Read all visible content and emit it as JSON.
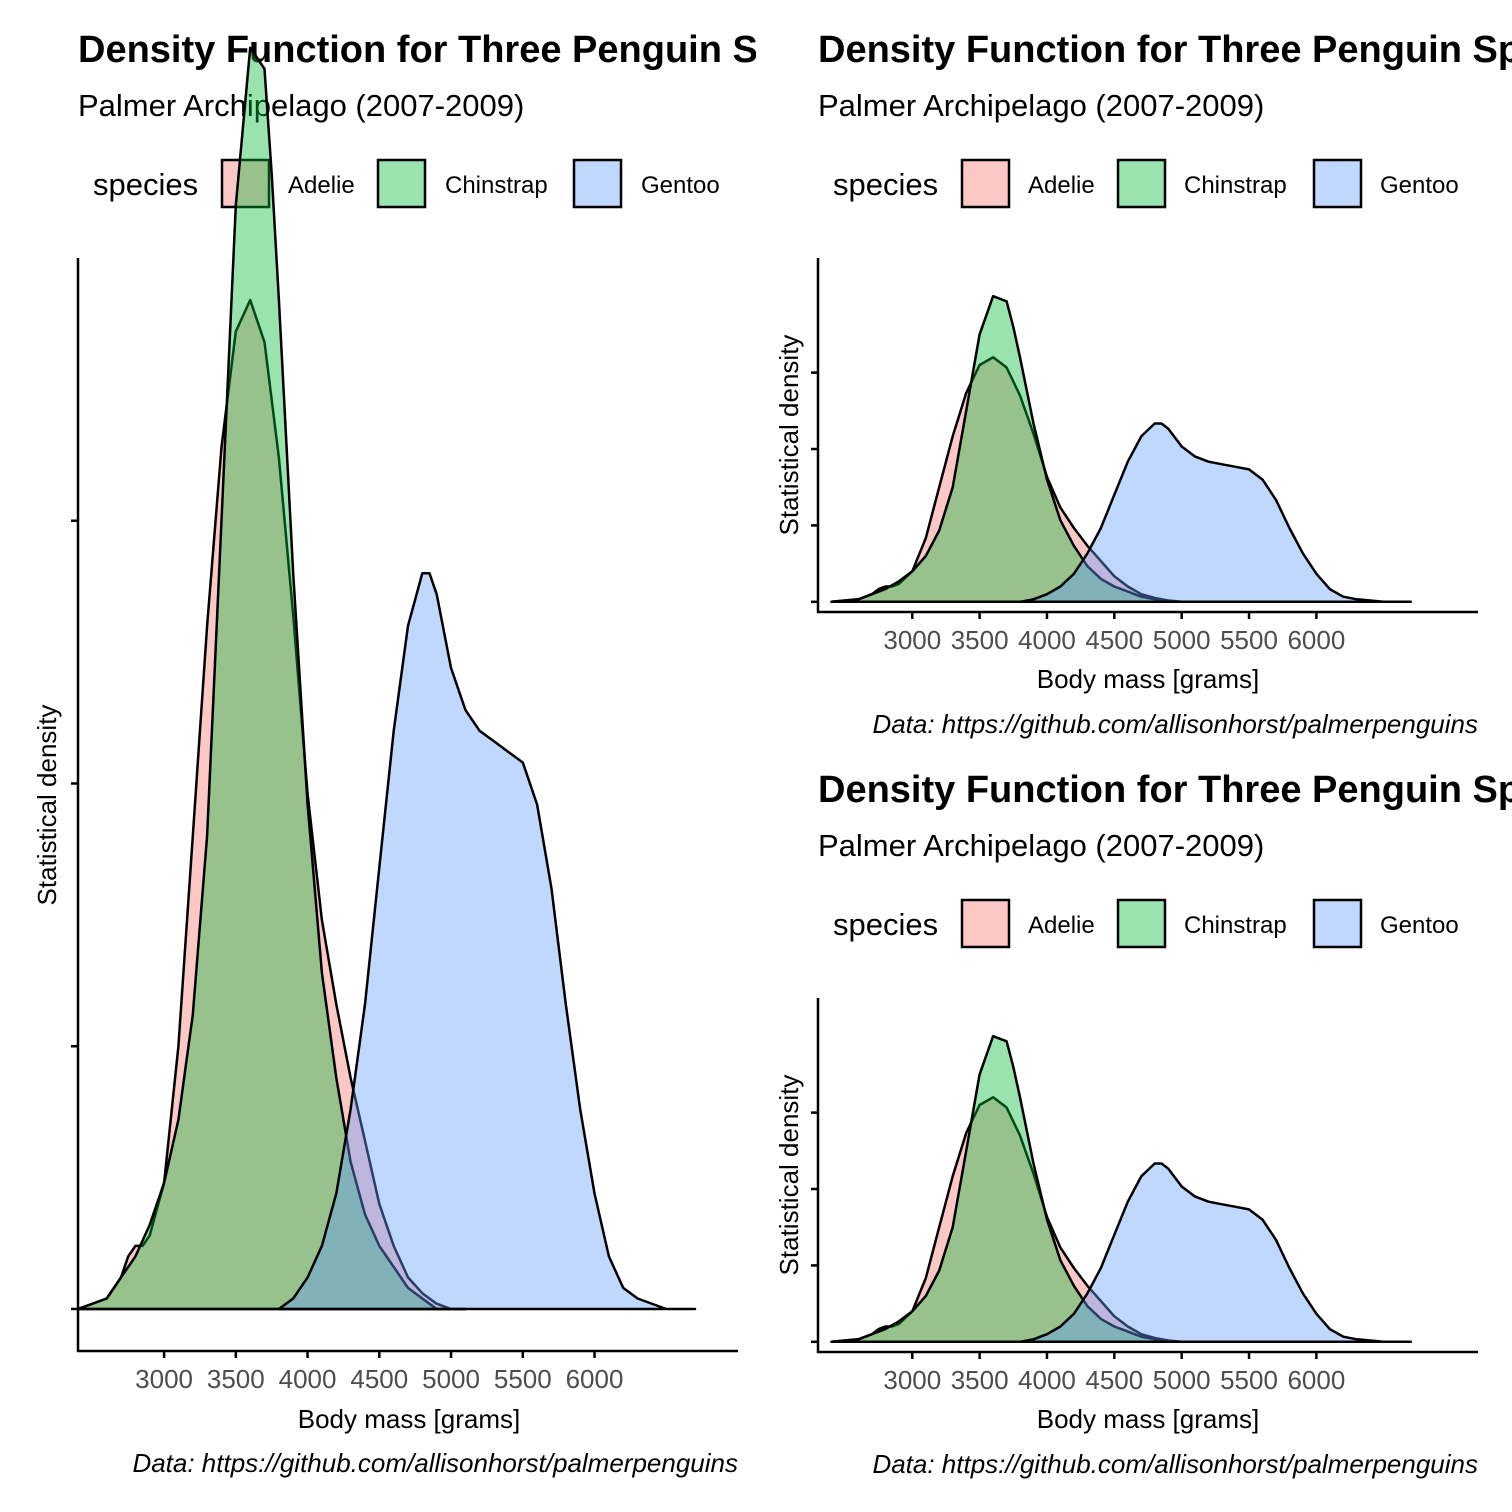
{
  "chart_data": [
    {
      "type": "area",
      "title": "Density Function for Three Penguin Species",
      "subtitle": "Palmer Archipelago (2007-2009)",
      "caption": "Data: https://github.com/allisonhorst/palmerpenguins",
      "xlabel": "Body mass [grams]",
      "ylabel": "Statistical density",
      "xlim": [
        2400,
        7000
      ],
      "ylim": [
        -4e-05,
        0.001
      ],
      "x_ticks": [
        3000,
        3500,
        4000,
        4500,
        5000,
        5500,
        6000
      ],
      "y_ticks": [
        0,
        0.00025,
        0.0005,
        0.00075
      ],
      "y_tick_labels_shown": false,
      "legend": {
        "title": "species",
        "position": "top",
        "entries": [
          "Adelie",
          "Chinstrap",
          "Gentoo"
        ]
      },
      "grid": false,
      "series": [
        {
          "name": "Adelie",
          "color": "#F8766D",
          "x": [
            2400,
            2600,
            2700,
            2750,
            2800,
            2850,
            2900,
            3000,
            3100,
            3200,
            3300,
            3400,
            3500,
            3600,
            3700,
            3800,
            3900,
            4000,
            4100,
            4200,
            4300,
            4400,
            4500,
            4600,
            4700,
            4800,
            4900,
            5000,
            5100
          ],
          "y": [
            0,
            1e-05,
            3e-05,
            5e-05,
            6e-05,
            6e-05,
            7e-05,
            0.00012,
            0.00025,
            0.00045,
            0.00065,
            0.00082,
            0.00093,
            0.00096,
            0.00092,
            0.00081,
            0.00066,
            0.00049,
            0.00037,
            0.00029,
            0.00022,
            0.00016,
            0.0001,
            6e-05,
            3e-05,
            1.5e-05,
            5e-06,
            0,
            0
          ]
        },
        {
          "name": "Chinstrap",
          "color": "#00BA38",
          "x": [
            2400,
            2600,
            2700,
            2800,
            2900,
            3000,
            3100,
            3200,
            3300,
            3400,
            3500,
            3600,
            3700,
            3750,
            3800,
            3900,
            4000,
            4100,
            4200,
            4300,
            4400,
            4500,
            4600,
            4700,
            4800,
            4900,
            5000,
            5100
          ],
          "y": [
            0,
            1e-05,
            3e-05,
            5e-05,
            8e-05,
            0.00012,
            0.00018,
            0.00028,
            0.00045,
            0.00075,
            0.00105,
            0.0012,
            0.00118,
            0.00108,
            0.00096,
            0.0007,
            0.00048,
            0.00032,
            0.00022,
            0.00014,
            9e-05,
            6e-05,
            4e-05,
            2e-05,
            1e-05,
            0,
            0,
            0
          ]
        },
        {
          "name": "Gentoo",
          "color": "#619CFF",
          "x": [
            3800,
            3900,
            4000,
            4100,
            4200,
            4300,
            4400,
            4500,
            4600,
            4700,
            4800,
            4850,
            4900,
            5000,
            5100,
            5200,
            5300,
            5400,
            5500,
            5600,
            5700,
            5800,
            5900,
            6000,
            6100,
            6200,
            6300,
            6500,
            6700
          ],
          "y": [
            0,
            1e-05,
            3e-05,
            6e-05,
            0.00011,
            0.00019,
            0.00029,
            0.00042,
            0.00055,
            0.00065,
            0.0007,
            0.0007,
            0.00068,
            0.00061,
            0.00057,
            0.00055,
            0.00054,
            0.00053,
            0.00052,
            0.00048,
            0.0004,
            0.00029,
            0.00019,
            0.00011,
            5e-05,
            2e-05,
            1e-05,
            0,
            0
          ]
        }
      ]
    },
    {
      "type": "area",
      "title": "Density Function for Three Penguin Species",
      "subtitle": "Palmer Archipelago (2007-2009)",
      "caption": "Data: https://github.com/allisonhorst/palmerpenguins",
      "xlabel": "Body mass [grams]",
      "ylabel": "Statistical density",
      "xlim": [
        2300,
        7200
      ],
      "ylim": [
        -4e-05,
        0.00135
      ],
      "x_ticks": [
        3000,
        3500,
        4000,
        4500,
        5000,
        5500,
        6000
      ],
      "y_ticks": [
        0,
        0.0003,
        0.0006,
        0.0009
      ],
      "y_tick_labels_shown": false,
      "legend": {
        "title": "species",
        "position": "top",
        "entries": [
          "Adelie",
          "Chinstrap",
          "Gentoo"
        ]
      },
      "grid": false,
      "series": [
        {
          "name": "Adelie",
          "color": "#F8766D",
          "x": [
            2400,
            2600,
            2700,
            2750,
            2800,
            2850,
            2900,
            3000,
            3100,
            3200,
            3300,
            3400,
            3500,
            3600,
            3700,
            3800,
            3900,
            4000,
            4100,
            4200,
            4300,
            4400,
            4500,
            4600,
            4700,
            4800,
            4900,
            5000,
            5100
          ],
          "y": [
            0,
            1e-05,
            3e-05,
            5e-05,
            6e-05,
            6e-05,
            7e-05,
            0.00012,
            0.00025,
            0.00045,
            0.00065,
            0.00082,
            0.00093,
            0.00096,
            0.00092,
            0.00081,
            0.00066,
            0.00049,
            0.00037,
            0.00029,
            0.00022,
            0.00016,
            0.0001,
            6e-05,
            3e-05,
            1.5e-05,
            5e-06,
            0,
            0
          ]
        },
        {
          "name": "Chinstrap",
          "color": "#00BA38",
          "x": [
            2400,
            2600,
            2700,
            2800,
            2900,
            3000,
            3100,
            3200,
            3300,
            3400,
            3500,
            3600,
            3700,
            3750,
            3800,
            3900,
            4000,
            4100,
            4200,
            4300,
            4400,
            4500,
            4600,
            4700,
            4800,
            4900,
            5000,
            5100
          ],
          "y": [
            0,
            1e-05,
            3e-05,
            5e-05,
            8e-05,
            0.00012,
            0.00018,
            0.00028,
            0.00045,
            0.00075,
            0.00105,
            0.0012,
            0.00118,
            0.00108,
            0.00096,
            0.0007,
            0.00048,
            0.00032,
            0.00022,
            0.00014,
            9e-05,
            6e-05,
            4e-05,
            2e-05,
            1e-05,
            0,
            0,
            0
          ]
        },
        {
          "name": "Gentoo",
          "color": "#619CFF",
          "x": [
            3800,
            3900,
            4000,
            4100,
            4200,
            4300,
            4400,
            4500,
            4600,
            4700,
            4800,
            4850,
            4900,
            5000,
            5100,
            5200,
            5300,
            5400,
            5500,
            5600,
            5700,
            5800,
            5900,
            6000,
            6100,
            6200,
            6300,
            6500,
            6700
          ],
          "y": [
            0,
            1e-05,
            3e-05,
            6e-05,
            0.00011,
            0.00019,
            0.00029,
            0.00042,
            0.00055,
            0.00065,
            0.0007,
            0.0007,
            0.00068,
            0.00061,
            0.00057,
            0.00055,
            0.00054,
            0.00053,
            0.00052,
            0.00048,
            0.0004,
            0.00029,
            0.00019,
            0.00011,
            5e-05,
            2e-05,
            1e-05,
            0,
            0
          ]
        }
      ]
    },
    {
      "type": "area",
      "title": "Density Function for Three Penguin Species",
      "subtitle": "Palmer Archipelago (2007-2009)",
      "caption": "Data: https://github.com/allisonhorst/palmerpenguins",
      "xlabel": "Body mass [grams]",
      "ylabel": "Statistical density",
      "xlim": [
        2300,
        7200
      ],
      "ylim": [
        -4e-05,
        0.00135
      ],
      "x_ticks": [
        3000,
        3500,
        4000,
        4500,
        5000,
        5500,
        6000
      ],
      "y_ticks": [
        0,
        0.0003,
        0.0006,
        0.0009
      ],
      "y_tick_labels_shown": false,
      "legend": {
        "title": "species",
        "position": "top",
        "entries": [
          "Adelie",
          "Chinstrap",
          "Gentoo"
        ]
      },
      "grid": false,
      "series": [
        {
          "name": "Adelie",
          "color": "#F8766D",
          "x": [
            2400,
            2600,
            2700,
            2750,
            2800,
            2850,
            2900,
            3000,
            3100,
            3200,
            3300,
            3400,
            3500,
            3600,
            3700,
            3800,
            3900,
            4000,
            4100,
            4200,
            4300,
            4400,
            4500,
            4600,
            4700,
            4800,
            4900,
            5000,
            5100
          ],
          "y": [
            0,
            1e-05,
            3e-05,
            5e-05,
            6e-05,
            6e-05,
            7e-05,
            0.00012,
            0.00025,
            0.00045,
            0.00065,
            0.00082,
            0.00093,
            0.00096,
            0.00092,
            0.00081,
            0.00066,
            0.00049,
            0.00037,
            0.00029,
            0.00022,
            0.00016,
            0.0001,
            6e-05,
            3e-05,
            1.5e-05,
            5e-06,
            0,
            0
          ]
        },
        {
          "name": "Chinstrap",
          "color": "#00BA38",
          "x": [
            2400,
            2600,
            2700,
            2800,
            2900,
            3000,
            3100,
            3200,
            3300,
            3400,
            3500,
            3600,
            3700,
            3750,
            3800,
            3900,
            4000,
            4100,
            4200,
            4300,
            4400,
            4500,
            4600,
            4700,
            4800,
            4900,
            5000,
            5100
          ],
          "y": [
            0,
            1e-05,
            3e-05,
            5e-05,
            8e-05,
            0.00012,
            0.00018,
            0.00028,
            0.00045,
            0.00075,
            0.00105,
            0.0012,
            0.00118,
            0.00108,
            0.00096,
            0.0007,
            0.00048,
            0.00032,
            0.00022,
            0.00014,
            9e-05,
            6e-05,
            4e-05,
            2e-05,
            1e-05,
            0,
            0,
            0
          ]
        },
        {
          "name": "Gentoo",
          "color": "#619CFF",
          "x": [
            3800,
            3900,
            4000,
            4100,
            4200,
            4300,
            4400,
            4500,
            4600,
            4700,
            4800,
            4850,
            4900,
            5000,
            5100,
            5200,
            5300,
            5400,
            5500,
            5600,
            5700,
            5800,
            5900,
            6000,
            6100,
            6200,
            6300,
            6500,
            6700
          ],
          "y": [
            0,
            1e-05,
            3e-05,
            6e-05,
            0.00011,
            0.00019,
            0.00029,
            0.00042,
            0.00055,
            0.00065,
            0.0007,
            0.0007,
            0.00068,
            0.00061,
            0.00057,
            0.00055,
            0.00054,
            0.00053,
            0.00052,
            0.00048,
            0.0004,
            0.00029,
            0.00019,
            0.00011,
            5e-05,
            2e-05,
            1e-05,
            0,
            0
          ]
        }
      ]
    }
  ]
}
